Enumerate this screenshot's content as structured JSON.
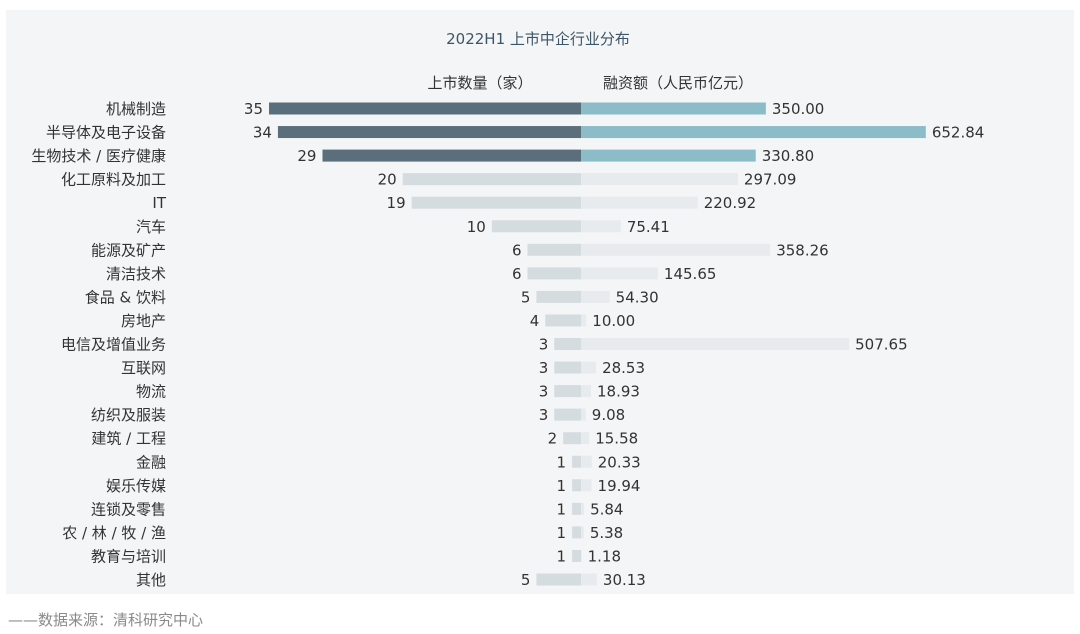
{
  "chart_data": {
    "type": "bar",
    "title": "2022H1 上市中企行业分布",
    "series": [
      {
        "name": "上市数量（家）",
        "values": [
          35,
          34,
          29,
          20,
          19,
          10,
          6,
          6,
          5,
          4,
          3,
          3,
          3,
          3,
          2,
          1,
          1,
          1,
          1,
          1,
          5
        ],
        "labels": [
          "35",
          "34",
          "29",
          "20",
          "19",
          "10",
          "6",
          "6",
          "5",
          "4",
          "3",
          "3",
          "3",
          "3",
          "2",
          "1",
          "1",
          "1",
          "1",
          "1",
          "5"
        ]
      },
      {
        "name": "融资额（人民币亿元）",
        "values": [
          350.0,
          652.84,
          330.8,
          297.09,
          220.92,
          75.41,
          358.26,
          145.65,
          54.3,
          10.0,
          507.65,
          28.53,
          18.93,
          9.08,
          15.58,
          20.33,
          19.94,
          5.84,
          5.38,
          1.18,
          30.13
        ],
        "labels": [
          "350.00",
          "652.84",
          "330.80",
          "297.09",
          "220.92",
          "75.41",
          "358.26",
          "145.65",
          "54.30",
          "10.00",
          "507.65",
          "28.53",
          "18.93",
          "9.08",
          "15.58",
          "20.33",
          "19.94",
          "5.84",
          "5.38",
          "1.18",
          "30.13"
        ]
      }
    ],
    "categories": [
      "机械制造",
      "半导体及电子设备",
      "生物技术 / 医疗健康",
      "化工原料及加工",
      "IT",
      "汽车",
      "能源及矿产",
      "清洁技术",
      "食品 & 饮料",
      "房地产",
      "电信及增值业务",
      "互联网",
      "物流",
      "纺织及服装",
      "建筑 / 工程",
      "金融",
      "娱乐传媒",
      "连锁及零售",
      "农 / 林 / 牧 / 渔",
      "教育与培训",
      "其他"
    ],
    "highlight_top": 3,
    "colors": {
      "left_highlight": "#5a6e7b",
      "right_highlight": "#8bbcc8",
      "left_normal": "#d5dcdf",
      "right_normal": "#e7ebed"
    }
  },
  "source_note": "——数据来源：清科研究中心"
}
